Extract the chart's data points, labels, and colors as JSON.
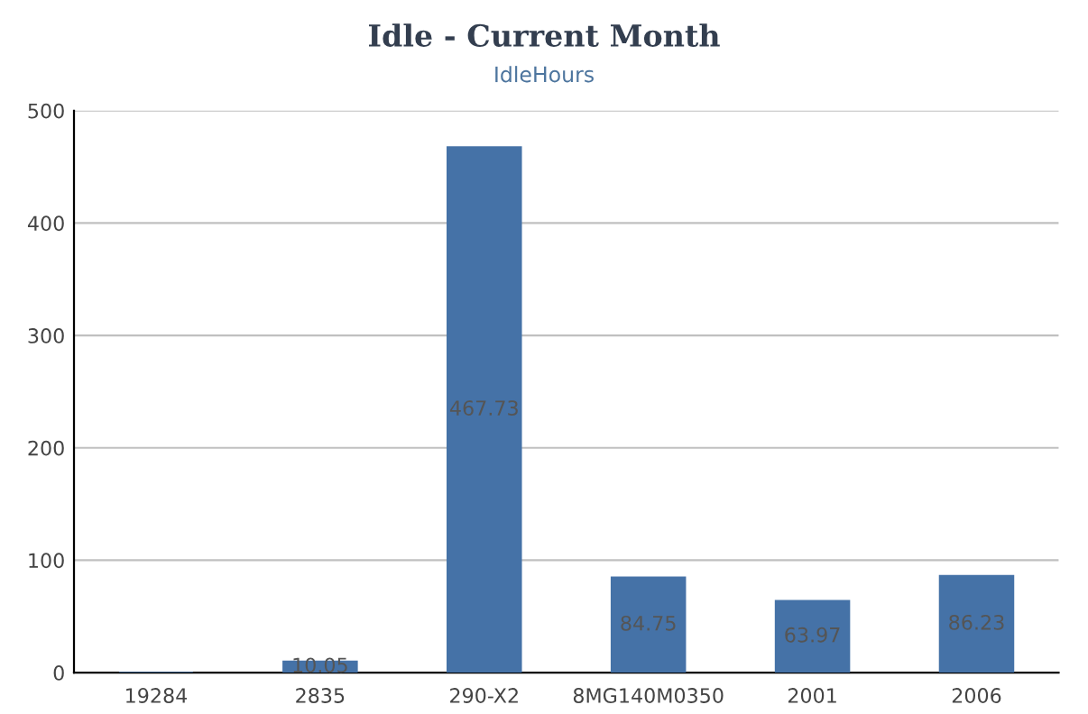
{
  "chart_data": {
    "type": "bar",
    "title": "Idle - Current Month",
    "subtitle": "IdleHours",
    "categories": [
      "19284",
      "2835",
      "290-X2",
      "8MG140M0350",
      "2001",
      "2006"
    ],
    "values": [
      0,
      10.05,
      467.73,
      84.75,
      63.97,
      86.23
    ],
    "value_labels": [
      null,
      "10.05",
      "467.73",
      "84.75",
      "63.97",
      "86.23"
    ],
    "color": "#4572a7",
    "ylim": [
      0,
      500
    ],
    "yticks": [
      0,
      100,
      200,
      300,
      400,
      500
    ],
    "grid": "y",
    "legend": false
  }
}
